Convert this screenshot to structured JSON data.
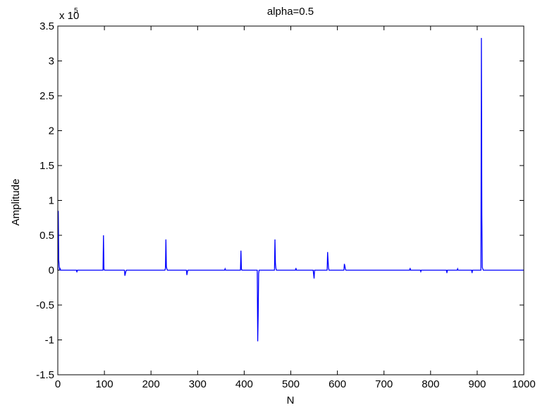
{
  "chart_data": {
    "type": "line",
    "title": "alpha=0.5",
    "xlabel": "N",
    "ylabel": "Amplitude",
    "y_multiplier_base": "x 10",
    "y_multiplier_exponent": "5",
    "xlim": [
      0,
      1000
    ],
    "ylim": [
      -1.5,
      3.5
    ],
    "grid": false,
    "x_ticks": [
      0,
      100,
      200,
      300,
      400,
      500,
      600,
      700,
      800,
      900,
      1000
    ],
    "x_tick_labels": [
      "0",
      "100",
      "200",
      "300",
      "400",
      "500",
      "600",
      "700",
      "800",
      "900",
      "1000"
    ],
    "y_ticks": [
      -1.5,
      -1,
      -0.5,
      0,
      0.5,
      1,
      1.5,
      2,
      2.5,
      3,
      3.5
    ],
    "y_tick_labels": [
      "-1.5",
      "-1",
      "-0.5",
      "0",
      "0.5",
      "1",
      "1.5",
      "2",
      "2.5",
      "3",
      "3.5"
    ],
    "series_color": "#0000ff",
    "series": [
      {
        "x": [
          0,
          1,
          2,
          3,
          4,
          5,
          6,
          40,
          41,
          42,
          97,
          98,
          99,
          100,
          143,
          144,
          145,
          146,
          147,
          230,
          231,
          232,
          233,
          234,
          235,
          276,
          277,
          278,
          279,
          358,
          359,
          360,
          392,
          393,
          394,
          395,
          428,
          429,
          430,
          431,
          432,
          465,
          466,
          467,
          468,
          469,
          510,
          511,
          512,
          548,
          549,
          550,
          551,
          578,
          579,
          580,
          581,
          582,
          614,
          615,
          616,
          617,
          618,
          755,
          756,
          757,
          778,
          779,
          780,
          834,
          835,
          836,
          857,
          858,
          859,
          888,
          889,
          890,
          908,
          909,
          910,
          911,
          912,
          913,
          1000
        ],
        "y": [
          0,
          0.85,
          0.15,
          0.05,
          0,
          0.02,
          0,
          0,
          -0.03,
          0,
          0,
          0.5,
          0.02,
          0,
          0,
          -0.08,
          -0.05,
          -0.02,
          0,
          0,
          0.03,
          0.44,
          0.05,
          0.02,
          0,
          0,
          -0.07,
          -0.03,
          0,
          0,
          0.02,
          0,
          0,
          0.28,
          0.02,
          0,
          0,
          -1.02,
          -0.65,
          -0.05,
          0,
          0,
          0.44,
          0.1,
          0.03,
          0,
          0,
          0.03,
          0,
          0,
          -0.06,
          -0.12,
          0,
          0,
          0.26,
          0.13,
          0.03,
          0,
          0,
          0.09,
          0.06,
          0.02,
          0,
          0,
          0.03,
          0,
          0,
          -0.02,
          0,
          0,
          -0.04,
          0,
          0,
          0.02,
          0,
          0,
          -0.04,
          0,
          0,
          3.33,
          0.78,
          0.04,
          0.02,
          0,
          0
        ]
      }
    ]
  }
}
